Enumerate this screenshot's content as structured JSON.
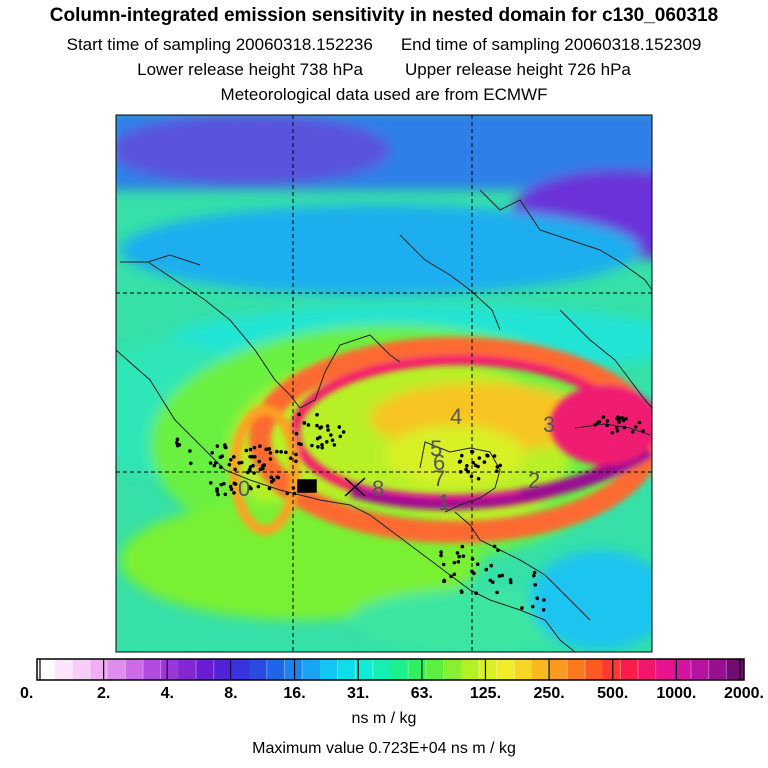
{
  "header": {
    "title": "Column-integrated emission sensitivity in nested domain for c130_060318",
    "start_label": "Start time of sampling 20060318.152236",
    "end_label": "End time of sampling 20060318.152309",
    "lower_label": "Lower release height  738 hPa",
    "upper_label": "Upper release height  726 hPa",
    "met_label": "Meteorological data used are from ECMWF"
  },
  "chart_data": {
    "type": "heatmap",
    "title": "Column-integrated emission sensitivity in nested domain for c130_060318",
    "colorbar": {
      "scale": "log",
      "unit": "ns m / kg",
      "tick_labels": [
        "0.",
        "2.",
        "4.",
        "8.",
        "16.",
        "31.",
        "63.",
        "125.",
        "250.",
        "500.",
        "1000.",
        "2000."
      ],
      "colors": [
        "#ffffff",
        "#fce6fc",
        "#f6cdf6",
        "#eeb0f2",
        "#de8cee",
        "#cc6ae8",
        "#b24ce0",
        "#9a36da",
        "#8226d6",
        "#6a1cd4",
        "#5222d6",
        "#3a32dc",
        "#2a4ae2",
        "#1e66e8",
        "#1a84ee",
        "#18a4f2",
        "#14c4f2",
        "#10dcec",
        "#10ecd8",
        "#14f0b4",
        "#1cf08c",
        "#30f060",
        "#5af040",
        "#88f030",
        "#b4f028",
        "#d8f028",
        "#f0ec28",
        "#f8d424",
        "#fab820",
        "#fc9a1e",
        "#fc7a1c",
        "#fc5a22",
        "#fc3a32",
        "#fc1e4a",
        "#f4166e",
        "#e6148e",
        "#d214a2",
        "#b812a2",
        "#9a0e92",
        "#720c74"
      ]
    },
    "maximum_label": "Maximum value  0.723E+04 ns m / kg",
    "time_markers": [
      "0",
      "8",
      "7",
      "6",
      "5",
      "4",
      "3",
      "2",
      "1"
    ]
  }
}
